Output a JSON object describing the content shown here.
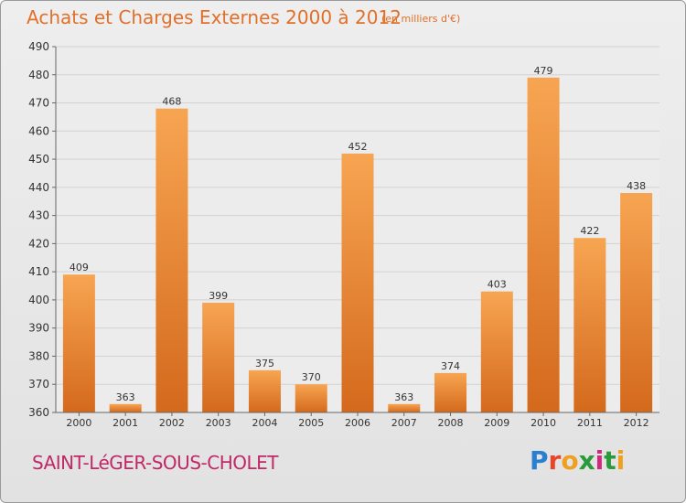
{
  "header": {
    "title": "Achats et Charges Externes 2000 à 2012",
    "subtitle": "(en milliers d'€)"
  },
  "footer": {
    "commune": "SAINT-LéGER-SOUS-CHOLET",
    "logo_letters": [
      "P",
      "r",
      "o",
      "x",
      "i",
      "t",
      "i"
    ],
    "logo_colors": [
      "#2a7fd0",
      "#e8462a",
      "#f0a020",
      "#2a9a3a",
      "#d02a80",
      "#2a9a3a",
      "#f0a020"
    ]
  },
  "chart_data": {
    "type": "bar",
    "categories": [
      "2000",
      "2001",
      "2002",
      "2003",
      "2004",
      "2005",
      "2006",
      "2007",
      "2008",
      "2009",
      "2010",
      "2011",
      "2012"
    ],
    "values": [
      409,
      363,
      468,
      399,
      375,
      370,
      452,
      363,
      374,
      403,
      479,
      422,
      438
    ],
    "yticks": [
      360,
      370,
      380,
      390,
      400,
      410,
      420,
      430,
      440,
      450,
      460,
      470,
      480,
      490
    ],
    "ylim": [
      360,
      490
    ],
    "grid": true,
    "bar_color": "#f08a30"
  }
}
